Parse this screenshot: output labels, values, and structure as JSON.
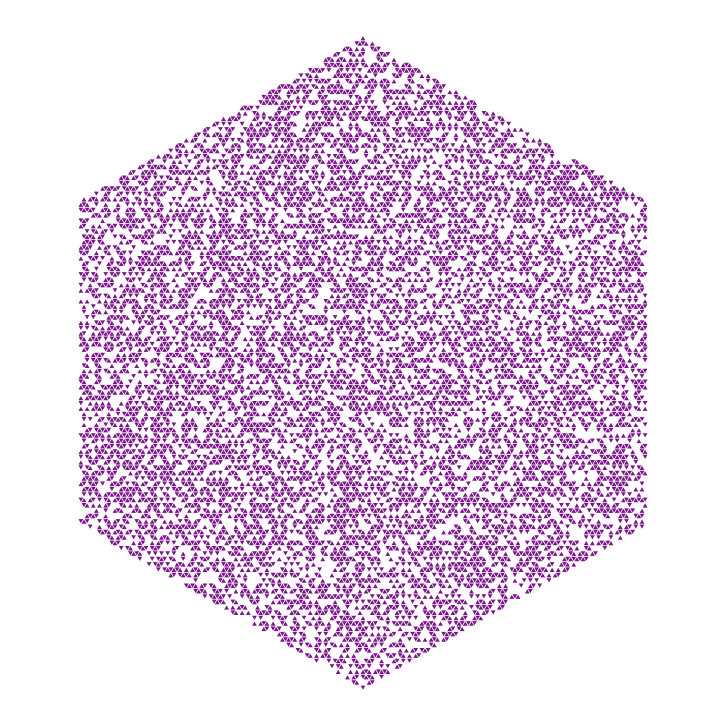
{
  "pattern": {
    "color": "#7b168a"
  }
}
